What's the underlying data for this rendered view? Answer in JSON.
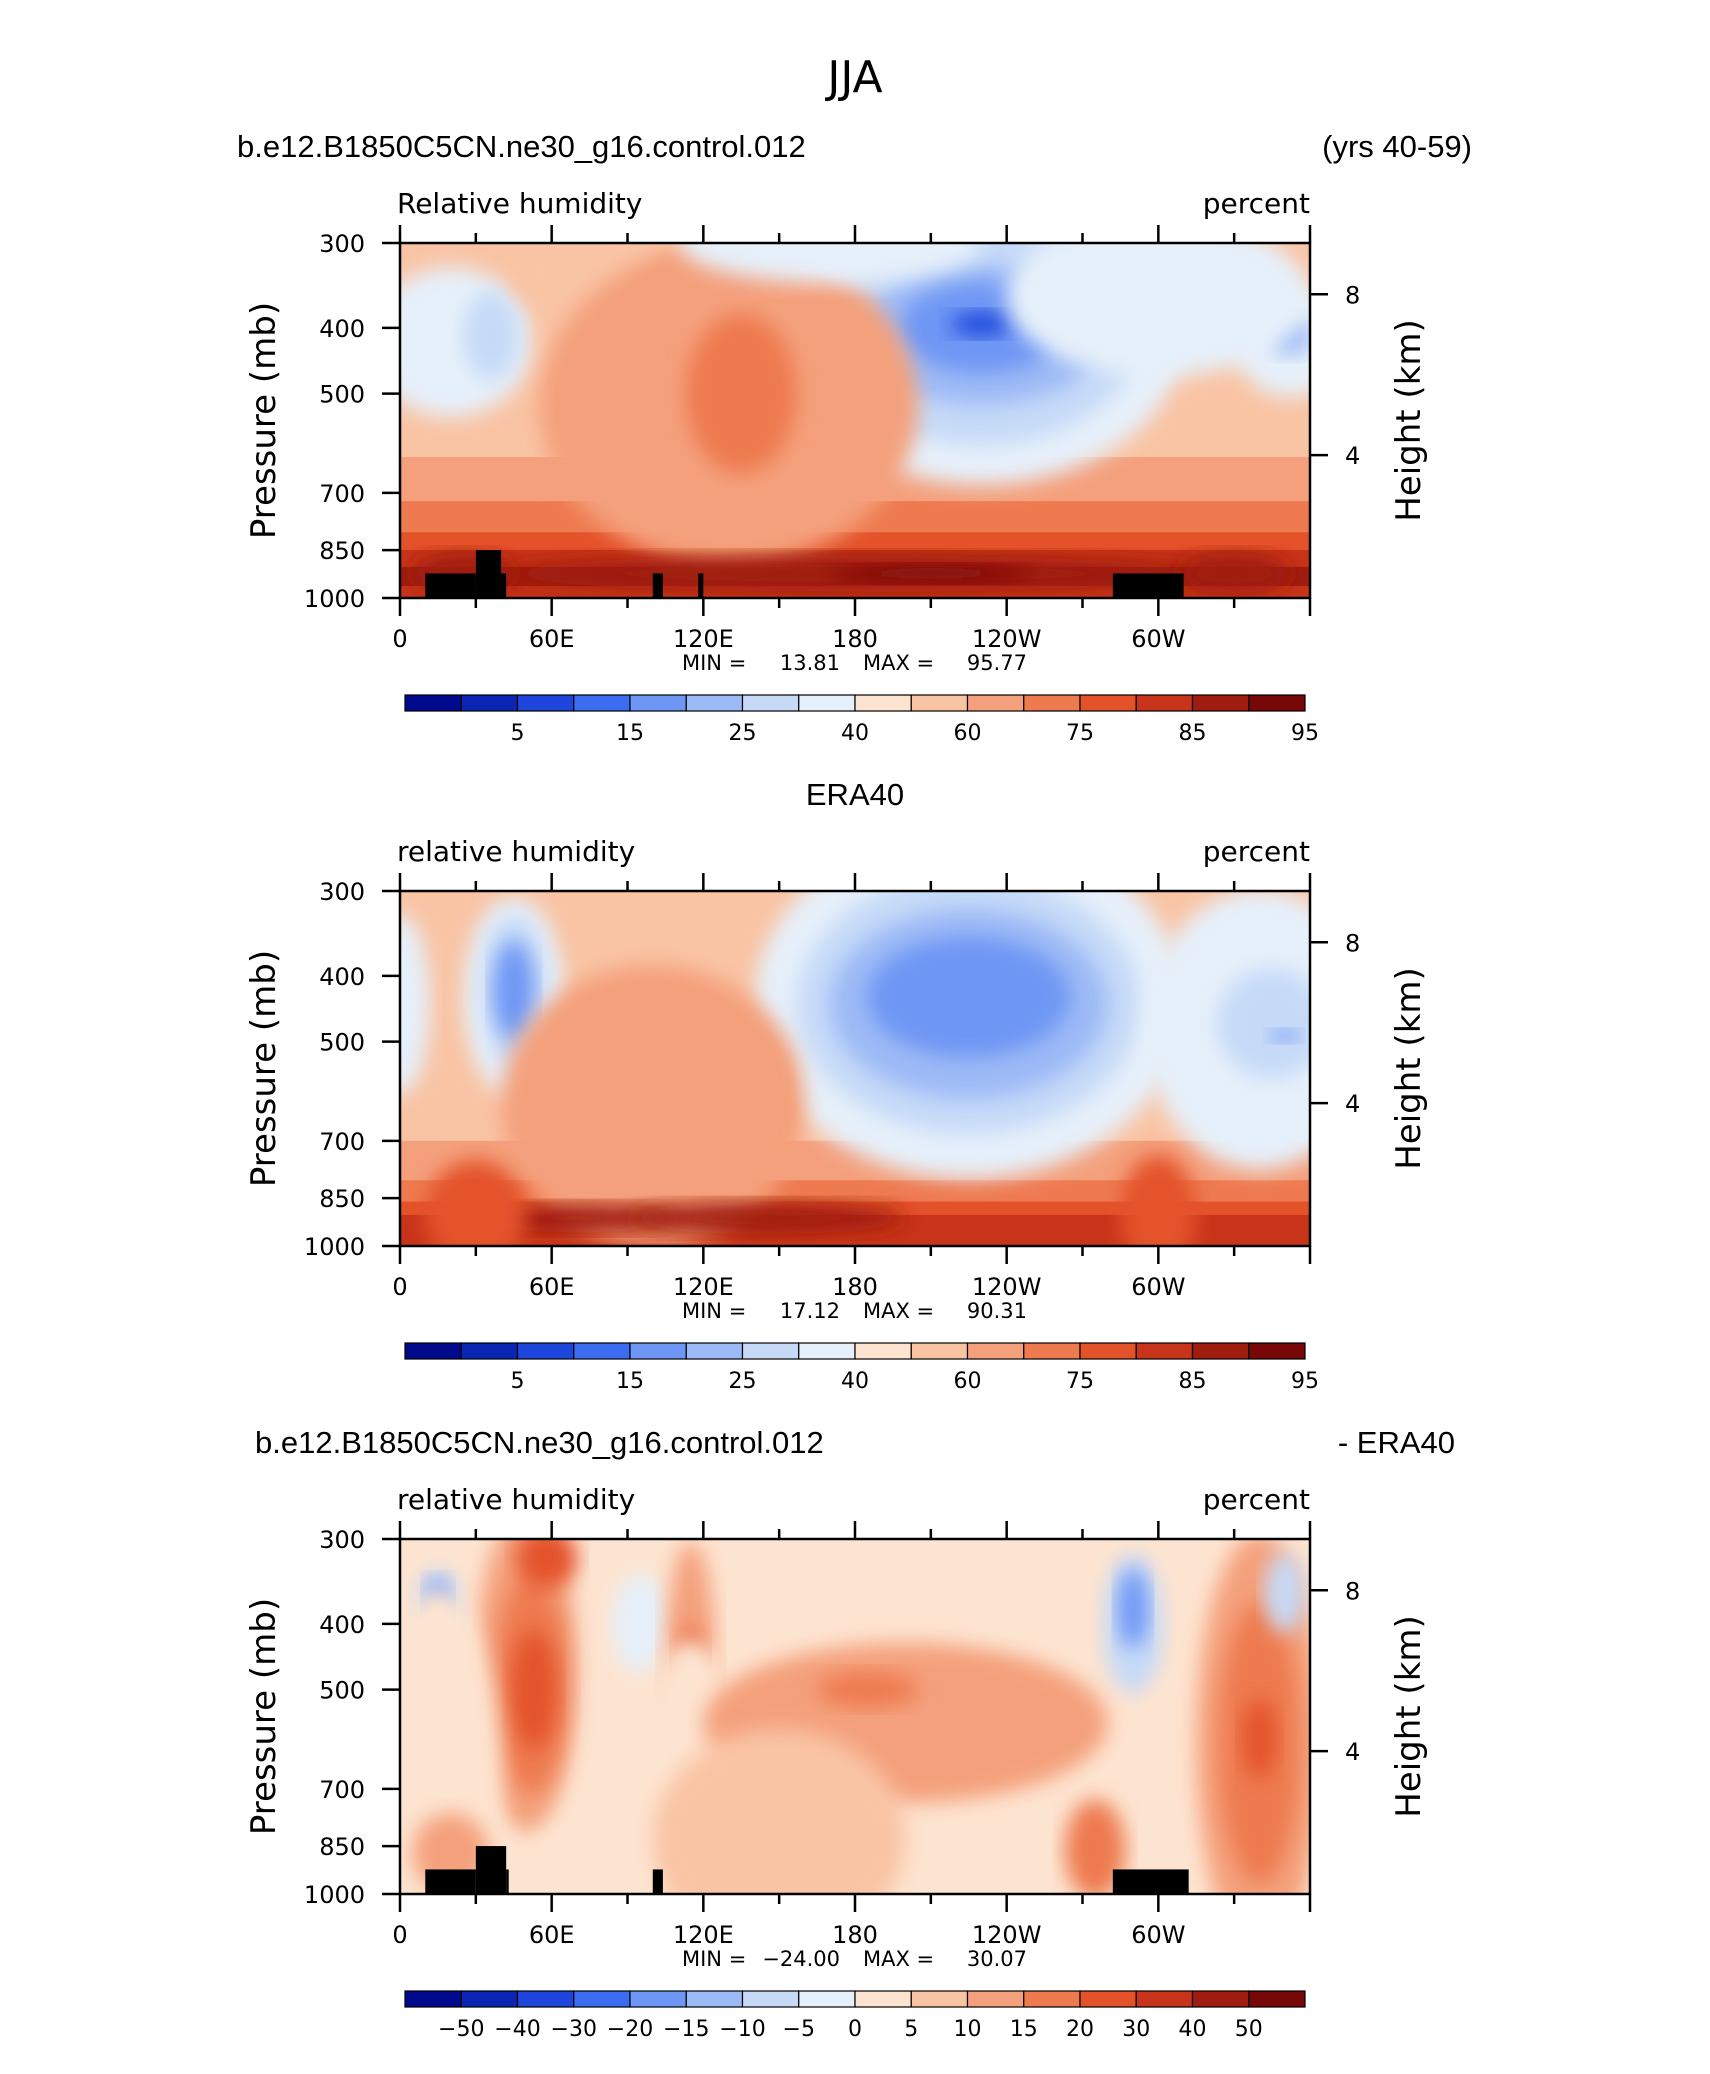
{
  "figure": {
    "title": "JJA",
    "vertical_tick_labels": [
      "300",
      "400",
      "500",
      "700",
      "850",
      "1000"
    ],
    "height_tick_labels": [
      "8",
      "4"
    ],
    "x_tick_labels": [
      "0",
      "60E",
      "120E",
      "180",
      "120W",
      "60W"
    ],
    "min_label": "MIN =",
    "max_label": "MAX ="
  },
  "panels": [
    {
      "header_left": "b.e12.B1850C5CN.ne30_g16.control.012",
      "header_right": "(yrs 40-59)",
      "header_center": "",
      "variable": "Relative humidity",
      "units": "percent",
      "ylabel_left": "Pressure (mb)",
      "ylabel_right": "Height (km)",
      "min_value": "13.81",
      "max_value": "95.77",
      "colorbar_labels": [
        "5",
        "15",
        "25",
        "40",
        "60",
        "75",
        "85",
        "95"
      ]
    },
    {
      "header_left": "",
      "header_right": "",
      "header_center": "ERA40",
      "variable": "relative humidity",
      "units": "percent",
      "ylabel_left": "Pressure (mb)",
      "ylabel_right": "Height (km)",
      "min_value": "17.12",
      "max_value": "90.31",
      "colorbar_labels": [
        "5",
        "15",
        "25",
        "40",
        "60",
        "75",
        "85",
        "95"
      ]
    },
    {
      "header_left": "b.e12.B1850C5CN.ne30_g16.control.012",
      "header_right": "- ERA40",
      "header_center": "",
      "variable": "relative humidity",
      "units": "percent",
      "ylabel_left": "Pressure (mb)",
      "ylabel_right": "Height (km)",
      "min_value": "−24.00",
      "max_value": "30.07",
      "colorbar_labels": [
        "−50",
        "−40",
        "−30",
        "−20",
        "−15",
        "−10",
        "−5",
        "0",
        "5",
        "10",
        "15",
        "20",
        "30",
        "40",
        "50"
      ]
    }
  ],
  "colors": {
    "abs_scale": [
      "#000a8c",
      "#0a24b4",
      "#1e46dc",
      "#3c6cf0",
      "#6e96f4",
      "#9cbaf6",
      "#c6daf8",
      "#e6f0fa",
      "#fde4d0",
      "#f9c4a4",
      "#f4a07c",
      "#ee7a50",
      "#e4522a",
      "#c8341a",
      "#a01c0e",
      "#780808"
    ],
    "diff_scale": [
      "#000a8c",
      "#0a24b4",
      "#1e46dc",
      "#3c6cf0",
      "#6e96f4",
      "#9cbaf6",
      "#c6daf8",
      "#e6f0fa",
      "#fde4d0",
      "#f9c4a4",
      "#f4a07c",
      "#ee7a50",
      "#e4522a",
      "#c8341a",
      "#a01c0e",
      "#780808"
    ]
  },
  "chart_data": [
    {
      "type": "heatmap",
      "title": "b.e12.B1850C5CN.ne30_g16.control.012",
      "subtitle": "Relative humidity",
      "units": "percent",
      "x_axis": "longitude",
      "x_range": [
        0,
        360
      ],
      "y_axis": "pressure (mb)",
      "y_range": [
        1000,
        300
      ],
      "y_ticks": [
        300,
        400,
        500,
        700,
        850,
        1000
      ],
      "contour_levels": [
        5,
        10,
        15,
        20,
        25,
        30,
        40,
        50,
        60,
        65,
        75,
        80,
        85,
        90,
        95
      ],
      "min": 13.81,
      "max": 95.77,
      "features": [
        {
          "lon": 230,
          "p": 400,
          "value": 14,
          "desc": "upper-tropospheric dry minimum"
        },
        {
          "lon": 35,
          "p": 400,
          "value": 22
        },
        {
          "lon": 352,
          "p": 400,
          "value": 23
        },
        {
          "lon": 145,
          "p": 550,
          "value": 76
        },
        {
          "lon": 180,
          "p": 920,
          "value": 95
        },
        {
          "lon": 40,
          "p": 920,
          "value": 90
        }
      ],
      "topography": [
        [
          10,
          30,
          920
        ],
        [
          30,
          40,
          850
        ],
        [
          40,
          42,
          920
        ],
        [
          100,
          104,
          920
        ],
        [
          118,
          120,
          920
        ],
        [
          282,
          310,
          920
        ]
      ]
    },
    {
      "type": "heatmap",
      "title": "ERA40",
      "subtitle": "relative humidity",
      "units": "percent",
      "x_axis": "longitude",
      "x_range": [
        0,
        360
      ],
      "y_axis": "pressure (mb)",
      "y_range": [
        1000,
        300
      ],
      "y_ticks": [
        300,
        400,
        500,
        700,
        850,
        1000
      ],
      "contour_levels": [
        5,
        10,
        15,
        20,
        25,
        30,
        40,
        50,
        60,
        65,
        75,
        80,
        85,
        90,
        95
      ],
      "min": 17.12,
      "max": 90.31,
      "features": [
        {
          "lon": 225,
          "p": 430,
          "value": 18
        },
        {
          "lon": 45,
          "p": 420,
          "value": 20
        },
        {
          "lon": 340,
          "p": 470,
          "value": 25
        },
        {
          "lon": 70,
          "p": 910,
          "value": 87
        },
        {
          "lon": 145,
          "p": 910,
          "value": 88
        }
      ],
      "topography": []
    },
    {
      "type": "heatmap",
      "title": "b.e12.B1850C5CN.ne30_g16.control.012 - ERA40",
      "subtitle": "relative humidity",
      "units": "percent",
      "x_axis": "longitude",
      "x_range": [
        0,
        360
      ],
      "y_axis": "pressure (mb)",
      "y_range": [
        1000,
        300
      ],
      "y_ticks": [
        300,
        400,
        500,
        700,
        850,
        1000
      ],
      "contour_levels": [
        -50,
        -40,
        -30,
        -20,
        -15,
        -10,
        -5,
        0,
        5,
        10,
        15,
        20,
        30,
        40,
        50
      ],
      "min": -24.0,
      "max": 30.07,
      "features": [
        {
          "lon": 15,
          "p": 380,
          "value": -22
        },
        {
          "lon": 50,
          "p": 480,
          "value": 28
        },
        {
          "lon": 60,
          "p": 320,
          "value": 22
        },
        {
          "lon": 290,
          "p": 380,
          "value": -24
        },
        {
          "lon": 340,
          "p": 600,
          "value": 25
        },
        {
          "lon": 115,
          "p": 480,
          "value": 20
        }
      ],
      "topography": [
        [
          10,
          30,
          920
        ],
        [
          30,
          42,
          850
        ],
        [
          42,
          43,
          920
        ],
        [
          100,
          104,
          920
        ],
        [
          282,
          312,
          920
        ]
      ]
    }
  ]
}
